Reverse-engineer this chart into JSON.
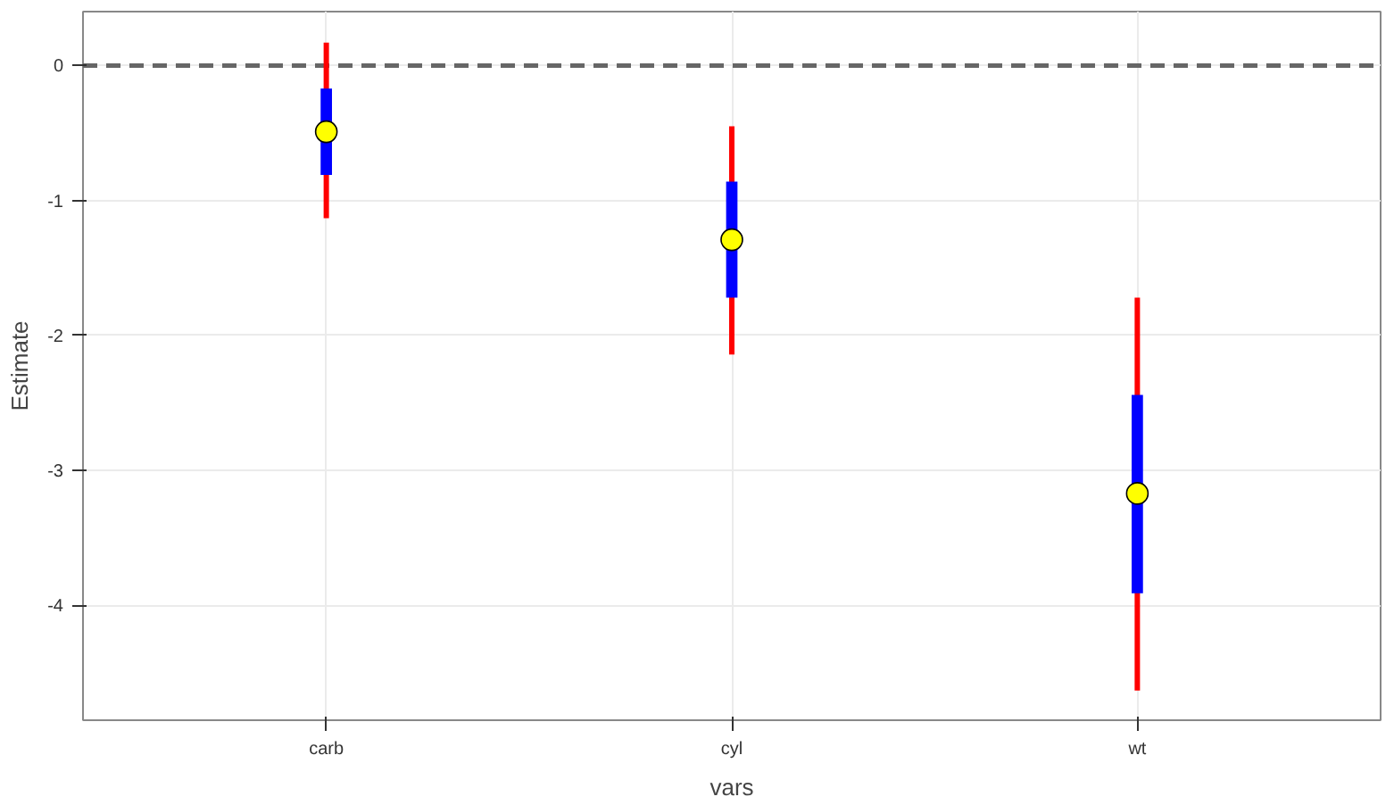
{
  "chart_data": {
    "type": "box",
    "xlabel": "vars",
    "ylabel": "Estimate",
    "categories": [
      "carb",
      "cyl",
      "wt"
    ],
    "ylim": [
      -4.85,
      0.4
    ],
    "yticks": [
      0,
      -1,
      -2,
      -3,
      -4
    ],
    "grid": true,
    "series": [
      {
        "color": "#0000ff",
        "boxes": [
          {
            "low": -1.13,
            "q1": -0.81,
            "median": -0.49,
            "q3": -0.17,
            "high": 0.17
          },
          {
            "low": -2.14,
            "q1": -1.72,
            "median": -1.29,
            "q3": -0.86,
            "high": -0.45
          },
          {
            "low": -4.63,
            "q1": -3.91,
            "median": -3.17,
            "q3": -2.44,
            "high": -1.72
          }
        ]
      }
    ],
    "ref_lines": [
      {
        "axis": "y",
        "value": 0,
        "label": null,
        "color": "#666666",
        "line_style": "dashed"
      }
    ]
  }
}
